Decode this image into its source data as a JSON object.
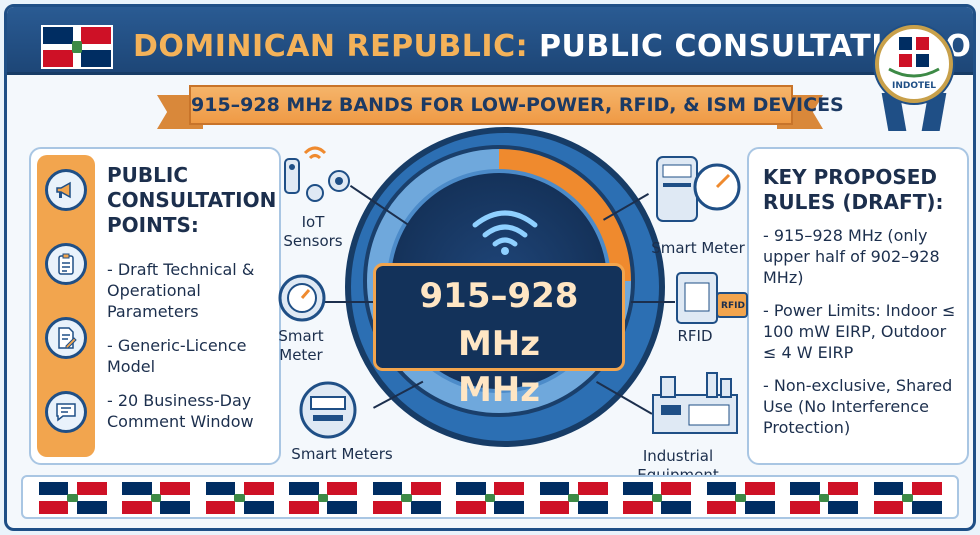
{
  "header": {
    "title_part1": "DOMINICAN REPUBLIC:",
    "title_part2": "PUBLIC CONSULTATION OPEN",
    "seal_label": "INDOTEL"
  },
  "banner": {
    "text": "915–928 MHz BANDS FOR LOW-POWER, RFID, & ISM DEVICES"
  },
  "left_panel": {
    "title_lines": [
      "PUBLIC",
      "CONSULTATION",
      "POINTS:"
    ],
    "items": [
      "- Draft Technical & Operational Parameters",
      "- Generic-Licence Model",
      "- 20 Business-Day Comment Window"
    ],
    "icons": [
      "megaphone-icon",
      "clipboard-icon",
      "document-edit-icon",
      "comment-icon"
    ]
  },
  "right_panel": {
    "title_lines": [
      "KEY PROPOSED",
      "RULES (DRAFT):"
    ],
    "items": [
      "- 915–928 MHz (only upper half of 902–928 MHz)",
      "- Power Limits: Indoor ≤ 100 mW EIRP, Outdoor ≤ 4 W EIRP",
      "- Non-exclusive, Shared Use (No Interference Protection)"
    ]
  },
  "center": {
    "freq_main": "915–928 MHz",
    "freq_sub": "MHz"
  },
  "devices": {
    "iot_sensors": "IoT Sensors",
    "smart_meter_left": "Smart Meter",
    "smart_meters": "Smart Meters",
    "smart_meter_right": "Smart Meter",
    "rfid": "RFID",
    "rfid_tag": "RFID",
    "industrial": "Industrial Equipment"
  },
  "colors": {
    "navy": "#1f4f86",
    "orange": "#f2a54e",
    "flag_blue": "#002d62",
    "flag_red": "#ce1126"
  },
  "flag_strip": {
    "count": 11
  }
}
